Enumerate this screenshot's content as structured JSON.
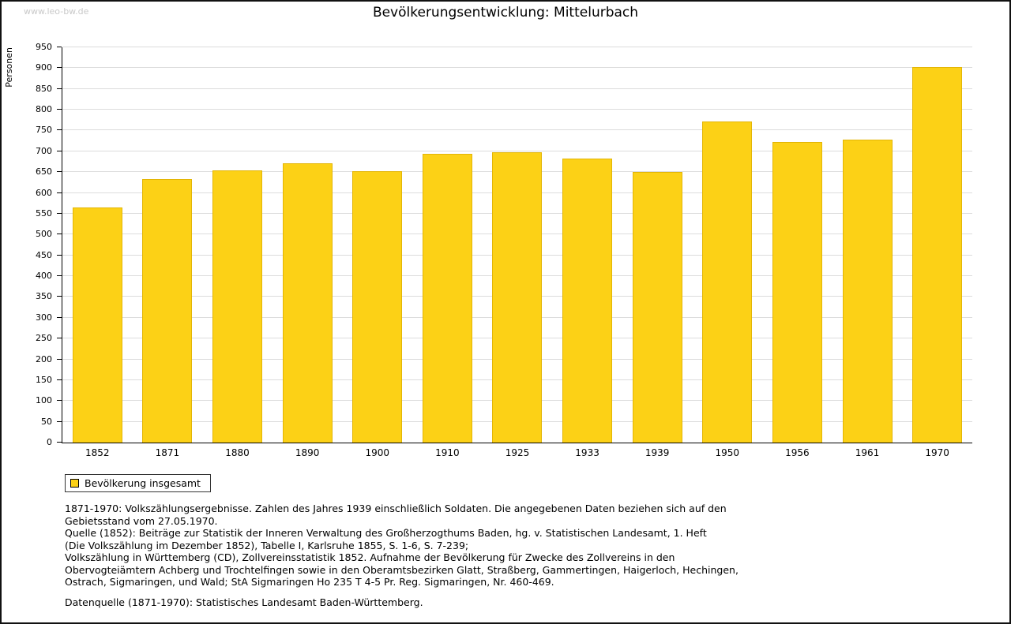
{
  "watermark": "www.leo-bw.de",
  "legend": {
    "label": "Bevölkerung insgesamt"
  },
  "colors": {
    "bar_fill": "#FCD116",
    "bar_border": "#E3B505",
    "grid": "#DCDCDC",
    "axis": "#000000"
  },
  "chart_data": {
    "type": "bar",
    "title": "Bevölkerungsentwicklung: Mittelurbach",
    "xlabel": "",
    "ylabel": "Personen",
    "categories": [
      "1852",
      "1871",
      "1880",
      "1890",
      "1900",
      "1910",
      "1925",
      "1933",
      "1939",
      "1950",
      "1956",
      "1961",
      "1970"
    ],
    "series": [
      {
        "name": "Bevölkerung insgesamt",
        "values": [
          565,
          634,
          655,
          672,
          653,
          694,
          697,
          683,
          651,
          771,
          722,
          728,
          903
        ]
      }
    ],
    "ylim": [
      0,
      950
    ],
    "ytick_step": 50,
    "grid": true,
    "legend_position": "bottom-left"
  },
  "notes": [
    "1871-1970: Volkszählungsergebnisse. Zahlen des Jahres 1939 einschließlich Soldaten. Die angegebenen Daten beziehen sich auf den",
    "Gebietsstand vom 27.05.1970.",
    "Quelle (1852): Beiträge zur Statistik der Inneren Verwaltung des Großherzogthums Baden, hg. v. Statistischen Landesamt, 1. Heft",
    "(Die Volkszählung im Dezember 1852), Tabelle I, Karlsruhe 1855, S. 1-6, S. 7-239;",
    "Volkszählung in Württemberg (CD), Zollvereinsstatistik 1852. Aufnahme der Bevölkerung für Zwecke des Zollvereins in den",
    "Obervogteiämtern Achberg und Trochtelfingen sowie in den Oberamtsbezirken Glatt, Straßberg, Gammertingen, Haigerloch, Hechingen,",
    "Ostrach, Sigmaringen, und Wald; StA Sigmaringen Ho 235 T 4-5 Pr. Reg. Sigmaringen, Nr. 460-469.",
    "",
    "Datenquelle (1871-1970): Statistisches Landesamt Baden-Württemberg."
  ]
}
